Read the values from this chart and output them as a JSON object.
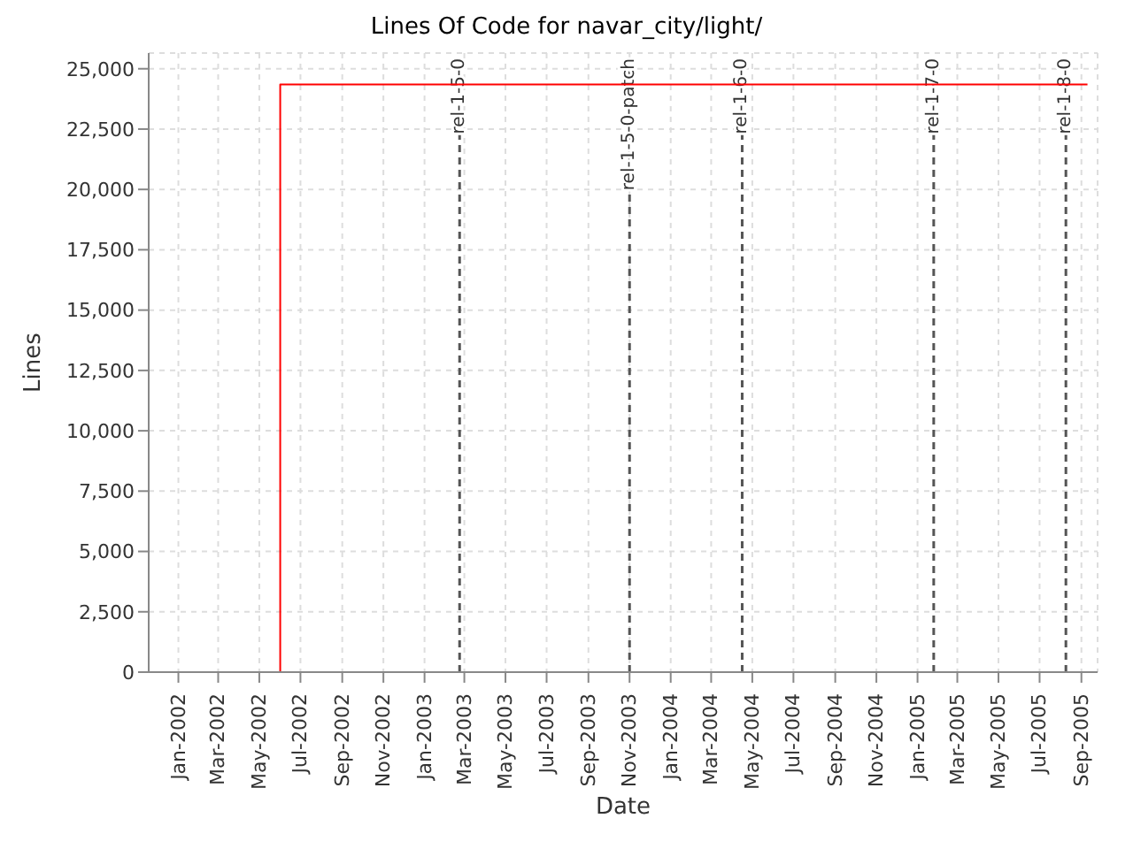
{
  "chart_data": {
    "type": "step",
    "title": "Lines Of Code for navar_city/light/",
    "xlabel": "Date",
    "ylabel": "Lines",
    "x": [
      "2001-12-14",
      "2002-06-01",
      "2005-09-10"
    ],
    "series": [
      {
        "color": "#ff0000",
        "values": [
          0,
          24350,
          24350
        ]
      }
    ],
    "xlim": [
      "2001-11-18",
      "2005-09-25"
    ],
    "xticks": [
      {
        "value": "2002-01-01",
        "label": "Jan-2002"
      },
      {
        "value": "2002-03-01",
        "label": "Mar-2002"
      },
      {
        "value": "2002-05-01",
        "label": "May-2002"
      },
      {
        "value": "2002-07-01",
        "label": "Jul-2002"
      },
      {
        "value": "2002-09-01",
        "label": "Sep-2002"
      },
      {
        "value": "2002-11-01",
        "label": "Nov-2002"
      },
      {
        "value": "2003-01-01",
        "label": "Jan-2003"
      },
      {
        "value": "2003-03-01",
        "label": "Mar-2003"
      },
      {
        "value": "2003-05-01",
        "label": "May-2003"
      },
      {
        "value": "2003-07-01",
        "label": "Jul-2003"
      },
      {
        "value": "2003-09-01",
        "label": "Sep-2003"
      },
      {
        "value": "2003-11-01",
        "label": "Nov-2003"
      },
      {
        "value": "2004-01-01",
        "label": "Jan-2004"
      },
      {
        "value": "2004-03-01",
        "label": "Mar-2004"
      },
      {
        "value": "2004-05-01",
        "label": "May-2004"
      },
      {
        "value": "2004-07-01",
        "label": "Jul-2004"
      },
      {
        "value": "2004-09-01",
        "label": "Sep-2004"
      },
      {
        "value": "2004-11-01",
        "label": "Nov-2004"
      },
      {
        "value": "2005-01-01",
        "label": "Jan-2005"
      },
      {
        "value": "2005-03-01",
        "label": "Mar-2005"
      },
      {
        "value": "2005-05-01",
        "label": "May-2005"
      },
      {
        "value": "2005-07-01",
        "label": "Jul-2005"
      },
      {
        "value": "2005-09-01",
        "label": "Sep-2005"
      }
    ],
    "ylim": [
      0,
      25650
    ],
    "yticks": [
      0,
      {
        "value": 2500,
        "label": "2,500"
      },
      {
        "value": 5000,
        "label": "5,000"
      },
      {
        "value": 7500,
        "label": "7,500"
      },
      {
        "value": 10000,
        "label": "10,000"
      },
      {
        "value": 12500,
        "label": "12,500"
      },
      {
        "value": 15000,
        "label": "15,000"
      },
      {
        "value": 17500,
        "label": "17,500"
      },
      {
        "value": 20000,
        "label": "20,000"
      },
      {
        "value": 22500,
        "label": "22,500"
      },
      {
        "value": 25000,
        "label": "25,000"
      }
    ],
    "ref_lines": [
      {
        "axis": "x",
        "value": "2003-02-22",
        "label": "rel-1-5-0",
        "line_style": "dashed",
        "color": "#555555"
      },
      {
        "axis": "x",
        "value": "2003-11-01",
        "label": "rel-1-5-0-patch",
        "line_style": "dashed",
        "color": "#555555"
      },
      {
        "axis": "x",
        "value": "2004-04-16",
        "label": "rel-1-6-0",
        "line_style": "dashed",
        "color": "#555555"
      },
      {
        "axis": "x",
        "value": "2005-01-25",
        "label": "rel-1-7-0",
        "line_style": "dashed",
        "color": "#555555"
      },
      {
        "axis": "x",
        "value": "2005-08-09",
        "label": "rel-1-8-0",
        "line_style": "dashed",
        "color": "#555555"
      }
    ],
    "grid": true,
    "marker": "none",
    "line_style": "solid"
  }
}
